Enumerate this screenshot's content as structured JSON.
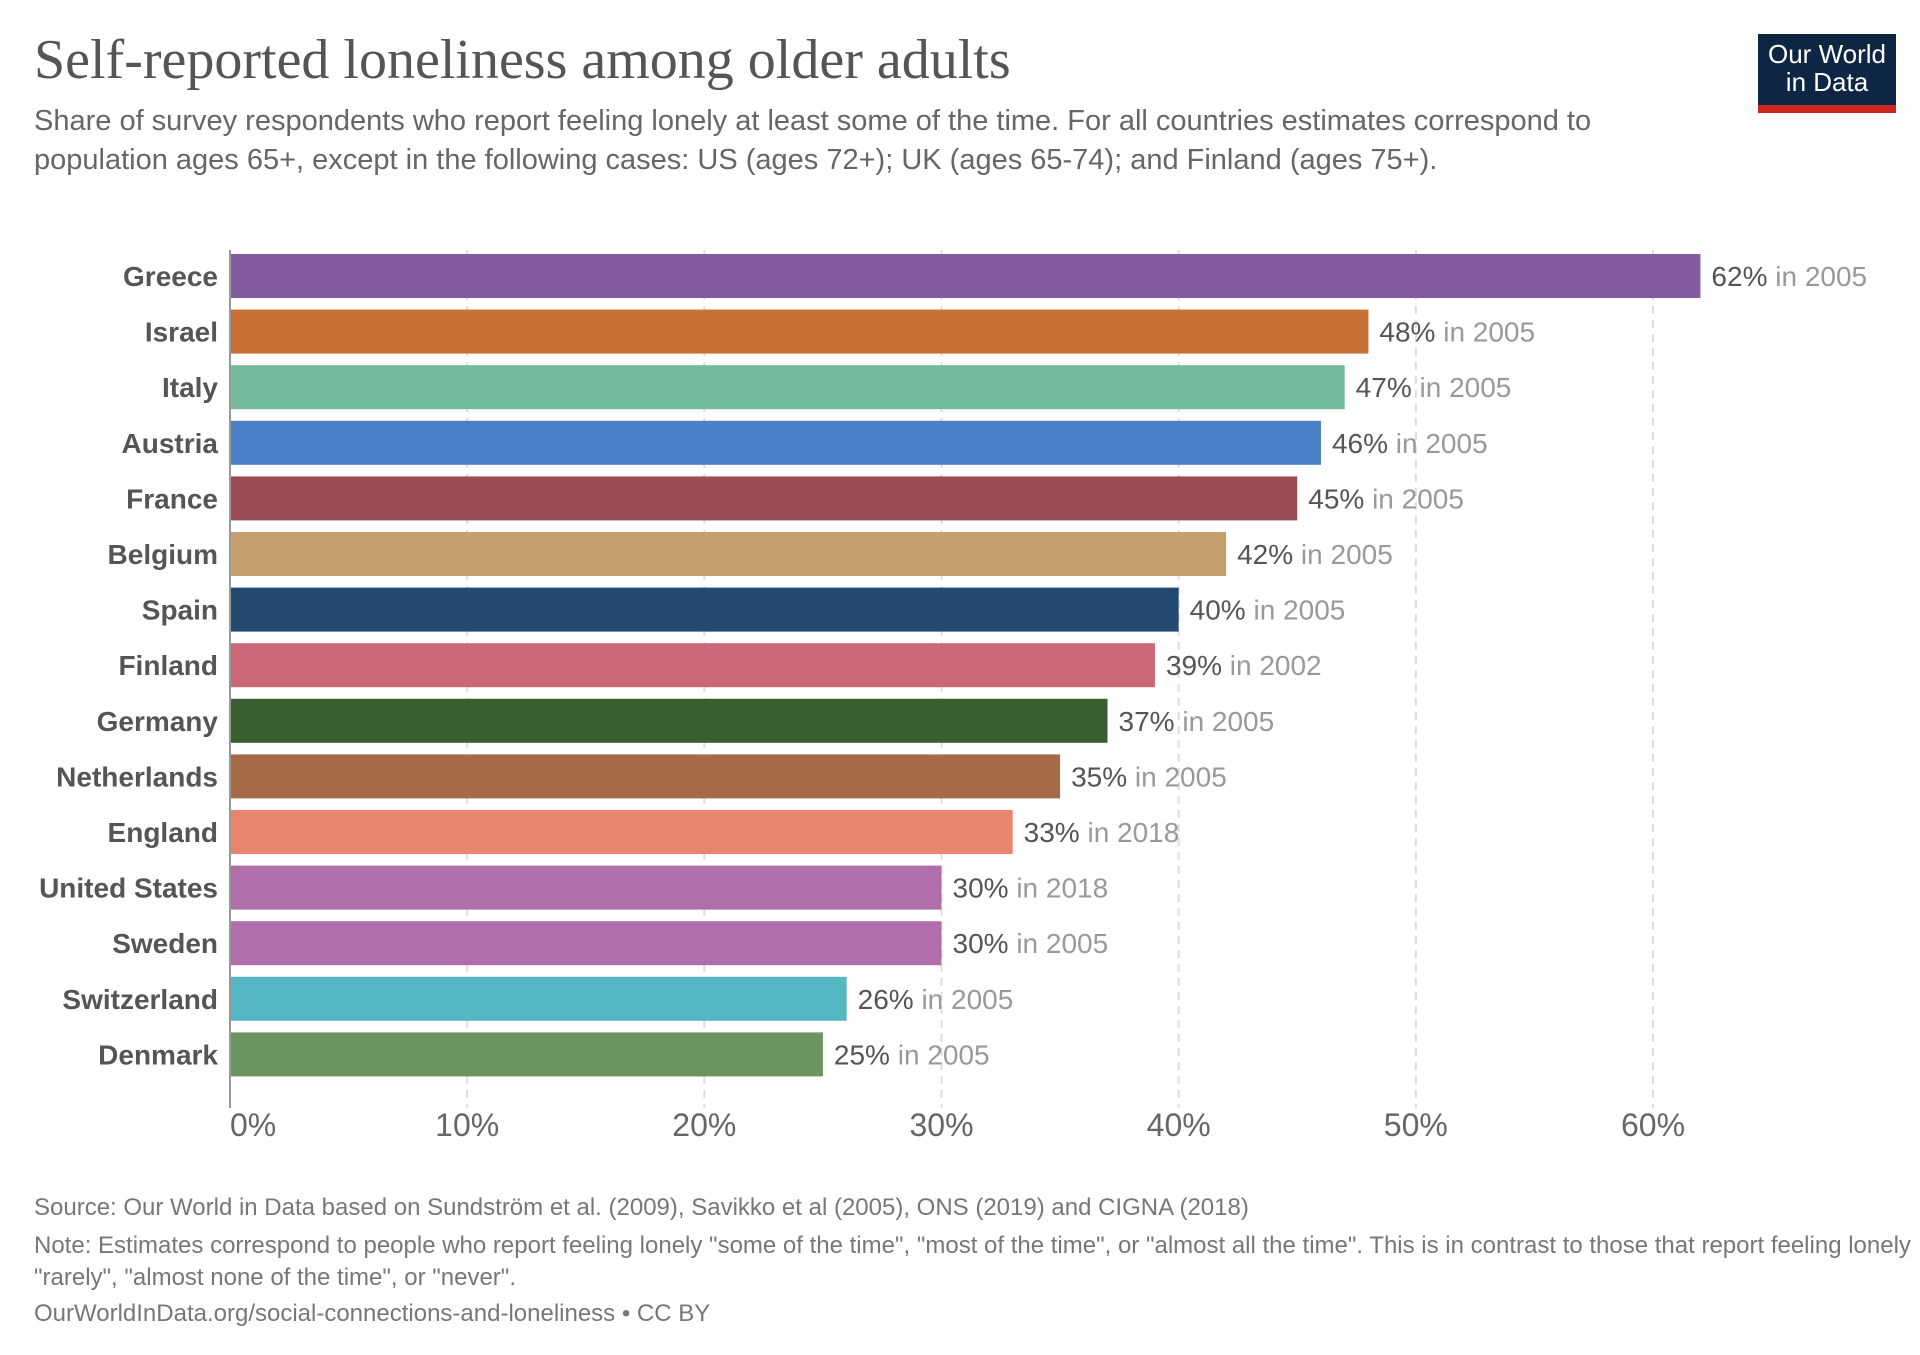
{
  "title": "Self-reported loneliness among older adults",
  "subtitle": "Share of survey respondents who report feeling lonely at least some of the time. For all countries estimates correspond to population ages 65+, except in the following cases: US (ages 72+); UK (ages 65-74); and Finland (ages 75+).",
  "logo": {
    "line1": "Our World",
    "line2": "in Data",
    "bg": "#0f2544",
    "accent": "#ce261e"
  },
  "footer": {
    "source": "Source: Our World in Data based on Sundström et al. (2009), Savikko et al (2005), ONS (2019) and CIGNA (2018)",
    "note": "Note: Estimates correspond to people who report feeling lonely \"some of the time\", \"most of the time\", or \"almost all the time\". This is in contrast to those that report feeling lonely \"rarely\", \"almost none of the time\", or \"never\".",
    "url": "OurWorldInData.org/social-connections-and-loneliness • CC BY"
  },
  "chart_data": {
    "type": "bar",
    "orientation": "horizontal",
    "xlim": [
      0,
      70
    ],
    "xticks": [
      0,
      10,
      20,
      30,
      40,
      50,
      60
    ],
    "xtick_labels": [
      "0%",
      "10%",
      "20%",
      "30%",
      "40%",
      "50%",
      "60%"
    ],
    "grid": "vertical dashed",
    "categories": [
      "Greece",
      "Israel",
      "Italy",
      "Austria",
      "France",
      "Belgium",
      "Spain",
      "Finland",
      "Germany",
      "Netherlands",
      "England",
      "United States",
      "Sweden",
      "Switzerland",
      "Denmark"
    ],
    "values": [
      62,
      48,
      47,
      46,
      45,
      42,
      40,
      39,
      37,
      35,
      33,
      30,
      30,
      26,
      25
    ],
    "value_labels": [
      "62%",
      "48%",
      "47%",
      "46%",
      "45%",
      "42%",
      "40%",
      "39%",
      "37%",
      "35%",
      "33%",
      "30%",
      "30%",
      "26%",
      "25%"
    ],
    "year_labels": [
      "in 2005",
      "in 2005",
      "in 2005",
      "in 2005",
      "in 2005",
      "in 2005",
      "in 2005",
      "in 2002",
      "in 2005",
      "in 2005",
      "in 2018",
      "in 2018",
      "in 2005",
      "in 2005",
      "in 2005"
    ],
    "colors": [
      "#835aa0",
      "#c87137",
      "#73b99b",
      "#4a80c7",
      "#9b4c54",
      "#c69f6e",
      "#244a72",
      "#cb6878",
      "#395f31",
      "#a66a47",
      "#e9856f",
      "#b06fab",
      "#b06fab",
      "#55b7c4",
      "#6c945e"
    ]
  }
}
